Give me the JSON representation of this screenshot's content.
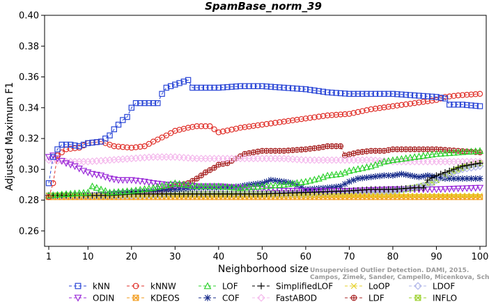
{
  "watermark": {
    "line1": "Unsupervised Outlier Detection. DAMI, 2015.",
    "line2": "Campos, Zimek, Sander, Campello, Micenkova, Schubert, Assent, Houle"
  },
  "chart_data": {
    "type": "line",
    "title": "SpamBase_norm_39",
    "xlabel": "Neighborhood size",
    "ylabel": "Adjusted Maximum F1",
    "xlim": [
      1,
      100
    ],
    "ylim": [
      0.25,
      0.4
    ],
    "xticks": [
      1,
      10,
      20,
      30,
      40,
      50,
      60,
      70,
      80,
      90,
      100
    ],
    "yticks": [
      0.26,
      0.28,
      0.3,
      0.32,
      0.34,
      0.36,
      0.38,
      0.4
    ],
    "ytick_labels": [
      "0.26",
      "0.28",
      "0.30",
      "0.32",
      "0.34",
      "0.36",
      "0.38",
      "0.40"
    ],
    "grid": false,
    "legend_position": "bottom",
    "series": [
      {
        "name": "kNN",
        "color": "#2a46d6",
        "marker": "square",
        "points": [
          [
            1,
            0.291
          ],
          [
            2,
            0.308
          ],
          [
            3,
            0.313
          ],
          [
            4,
            0.316
          ],
          [
            6,
            0.316
          ],
          [
            8,
            0.315
          ],
          [
            10,
            0.317
          ],
          [
            13,
            0.318
          ],
          [
            15,
            0.322
          ],
          [
            16,
            0.326
          ],
          [
            18,
            0.332
          ],
          [
            19,
            0.334
          ],
          [
            20,
            0.34
          ],
          [
            21,
            0.343
          ],
          [
            23,
            0.343
          ],
          [
            26,
            0.343
          ],
          [
            27,
            0.349
          ],
          [
            28,
            0.353
          ],
          [
            30,
            0.355
          ],
          [
            32,
            0.357
          ],
          [
            33,
            0.358
          ],
          [
            34,
            0.353
          ],
          [
            40,
            0.353
          ],
          [
            45,
            0.354
          ],
          [
            50,
            0.354
          ],
          [
            55,
            0.353
          ],
          [
            60,
            0.352
          ],
          [
            65,
            0.35
          ],
          [
            70,
            0.349
          ],
          [
            75,
            0.349
          ],
          [
            80,
            0.349
          ],
          [
            85,
            0.348
          ],
          [
            90,
            0.347
          ],
          [
            92,
            0.346
          ],
          [
            93,
            0.342
          ],
          [
            96,
            0.342
          ],
          [
            100,
            0.341
          ]
        ]
      },
      {
        "name": "kNNW",
        "color": "#e0302a",
        "marker": "circle",
        "points": [
          [
            1,
            0.282
          ],
          [
            2,
            0.291
          ],
          [
            3,
            0.309
          ],
          [
            4,
            0.311
          ],
          [
            5,
            0.313
          ],
          [
            8,
            0.314
          ],
          [
            10,
            0.317
          ],
          [
            13,
            0.318
          ],
          [
            15,
            0.316
          ],
          [
            16,
            0.315
          ],
          [
            20,
            0.314
          ],
          [
            23,
            0.315
          ],
          [
            25,
            0.318
          ],
          [
            28,
            0.322
          ],
          [
            30,
            0.325
          ],
          [
            33,
            0.327
          ],
          [
            35,
            0.328
          ],
          [
            38,
            0.328
          ],
          [
            39,
            0.326
          ],
          [
            40,
            0.324
          ],
          [
            45,
            0.327
          ],
          [
            50,
            0.329
          ],
          [
            55,
            0.331
          ],
          [
            60,
            0.333
          ],
          [
            65,
            0.335
          ],
          [
            70,
            0.336
          ],
          [
            75,
            0.339
          ],
          [
            80,
            0.341
          ],
          [
            85,
            0.343
          ],
          [
            90,
            0.345
          ],
          [
            92,
            0.347
          ],
          [
            95,
            0.348
          ],
          [
            100,
            0.349
          ]
        ]
      },
      {
        "name": "LOF",
        "color": "#2ed12e",
        "marker": "triangle",
        "points": [
          [
            1,
            0.283
          ],
          [
            5,
            0.284
          ],
          [
            10,
            0.285
          ],
          [
            11,
            0.289
          ],
          [
            13,
            0.287
          ],
          [
            15,
            0.285
          ],
          [
            20,
            0.286
          ],
          [
            25,
            0.288
          ],
          [
            30,
            0.291
          ],
          [
            35,
            0.289
          ],
          [
            40,
            0.289
          ],
          [
            45,
            0.288
          ],
          [
            50,
            0.289
          ],
          [
            55,
            0.29
          ],
          [
            60,
            0.292
          ],
          [
            63,
            0.294
          ],
          [
            65,
            0.296
          ],
          [
            68,
            0.297
          ],
          [
            70,
            0.299
          ],
          [
            75,
            0.302
          ],
          [
            78,
            0.305
          ],
          [
            80,
            0.306
          ],
          [
            85,
            0.308
          ],
          [
            90,
            0.31
          ],
          [
            95,
            0.311
          ],
          [
            100,
            0.312
          ]
        ]
      },
      {
        "name": "SimplifiedLOF",
        "color": "#000000",
        "marker": "plus",
        "points": [
          [
            1,
            0.283
          ],
          [
            10,
            0.283
          ],
          [
            15,
            0.283
          ],
          [
            20,
            0.284
          ],
          [
            30,
            0.284
          ],
          [
            40,
            0.284
          ],
          [
            50,
            0.284
          ],
          [
            60,
            0.285
          ],
          [
            70,
            0.286
          ],
          [
            75,
            0.287
          ],
          [
            80,
            0.287
          ],
          [
            85,
            0.288
          ],
          [
            87,
            0.288
          ],
          [
            88,
            0.293
          ],
          [
            90,
            0.296
          ],
          [
            92,
            0.298
          ],
          [
            94,
            0.3
          ],
          [
            96,
            0.302
          ],
          [
            98,
            0.303
          ],
          [
            100,
            0.304
          ]
        ]
      },
      {
        "name": "LoOP",
        "color": "#e6d12a",
        "marker": "x",
        "points": [
          [
            1,
            0.283
          ],
          [
            10,
            0.283
          ],
          [
            20,
            0.283
          ],
          [
            30,
            0.283
          ],
          [
            40,
            0.283
          ],
          [
            50,
            0.283
          ],
          [
            60,
            0.283
          ],
          [
            70,
            0.283
          ],
          [
            80,
            0.283
          ],
          [
            90,
            0.283
          ],
          [
            100,
            0.283
          ]
        ]
      },
      {
        "name": "LDOF",
        "color": "#aeb4e8",
        "marker": "diamond",
        "points": [
          [
            1,
            0.283
          ],
          [
            10,
            0.283
          ],
          [
            20,
            0.283
          ],
          [
            30,
            0.284
          ],
          [
            40,
            0.284
          ],
          [
            50,
            0.284
          ],
          [
            60,
            0.284
          ],
          [
            70,
            0.285
          ],
          [
            80,
            0.286
          ],
          [
            85,
            0.288
          ],
          [
            88,
            0.29
          ],
          [
            90,
            0.293
          ],
          [
            92,
            0.296
          ],
          [
            94,
            0.298
          ],
          [
            96,
            0.3
          ],
          [
            98,
            0.301
          ],
          [
            100,
            0.302
          ]
        ]
      },
      {
        "name": "ODIN",
        "color": "#9a2ad8",
        "marker": "triangle-down",
        "points": [
          [
            1,
            0.308
          ],
          [
            2,
            0.309
          ],
          [
            3,
            0.307
          ],
          [
            5,
            0.304
          ],
          [
            7,
            0.302
          ],
          [
            9,
            0.299
          ],
          [
            11,
            0.297
          ],
          [
            13,
            0.296
          ],
          [
            15,
            0.294
          ],
          [
            17,
            0.293
          ],
          [
            20,
            0.293
          ],
          [
            23,
            0.292
          ],
          [
            25,
            0.291
          ],
          [
            28,
            0.29
          ],
          [
            30,
            0.29
          ],
          [
            35,
            0.289
          ],
          [
            40,
            0.289
          ],
          [
            45,
            0.288
          ],
          [
            50,
            0.287
          ],
          [
            55,
            0.286
          ],
          [
            60,
            0.286
          ],
          [
            70,
            0.286
          ],
          [
            80,
            0.287
          ],
          [
            90,
            0.287
          ],
          [
            100,
            0.288
          ]
        ]
      },
      {
        "name": "KDEOS",
        "color": "#f29a18",
        "marker": "square-x",
        "points": [
          [
            1,
            0.282
          ],
          [
            10,
            0.282
          ],
          [
            20,
            0.282
          ],
          [
            30,
            0.282
          ],
          [
            40,
            0.282
          ],
          [
            50,
            0.282
          ],
          [
            60,
            0.282
          ],
          [
            70,
            0.282
          ],
          [
            80,
            0.282
          ],
          [
            90,
            0.282
          ],
          [
            100,
            0.282
          ]
        ]
      },
      {
        "name": "COF",
        "color": "#1a2e8c",
        "marker": "star",
        "points": [
          [
            1,
            0.283
          ],
          [
            10,
            0.283
          ],
          [
            15,
            0.284
          ],
          [
            20,
            0.285
          ],
          [
            25,
            0.286
          ],
          [
            30,
            0.287
          ],
          [
            35,
            0.288
          ],
          [
            40,
            0.288
          ],
          [
            45,
            0.289
          ],
          [
            47,
            0.29
          ],
          [
            50,
            0.291
          ],
          [
            52,
            0.293
          ],
          [
            55,
            0.292
          ],
          [
            57,
            0.291
          ],
          [
            60,
            0.287
          ],
          [
            65,
            0.288
          ],
          [
            68,
            0.289
          ],
          [
            70,
            0.292
          ],
          [
            72,
            0.294
          ],
          [
            75,
            0.295
          ],
          [
            78,
            0.296
          ],
          [
            80,
            0.296
          ],
          [
            82,
            0.297
          ],
          [
            84,
            0.296
          ],
          [
            86,
            0.295
          ],
          [
            88,
            0.296
          ],
          [
            90,
            0.295
          ],
          [
            92,
            0.294
          ],
          [
            95,
            0.294
          ],
          [
            100,
            0.294
          ]
        ]
      },
      {
        "name": "FastABOD",
        "color": "#f4b8ec",
        "marker": "diamond",
        "points": [
          [
            1,
            0.306
          ],
          [
            5,
            0.305
          ],
          [
            10,
            0.305
          ],
          [
            15,
            0.306
          ],
          [
            20,
            0.307
          ],
          [
            25,
            0.308
          ],
          [
            30,
            0.308
          ],
          [
            35,
            0.307
          ],
          [
            40,
            0.307
          ],
          [
            45,
            0.307
          ],
          [
            50,
            0.307
          ],
          [
            55,
            0.307
          ],
          [
            60,
            0.306
          ],
          [
            65,
            0.306
          ],
          [
            68,
            0.306
          ],
          [
            70,
            0.306
          ],
          [
            75,
            0.306
          ],
          [
            80,
            0.305
          ],
          [
            85,
            0.305
          ],
          [
            90,
            0.305
          ],
          [
            95,
            0.305
          ],
          [
            100,
            0.305
          ]
        ]
      },
      {
        "name": "LDF",
        "color": "#a82424",
        "marker": "circle-plus",
        "points": [
          [
            1,
            0.283
          ],
          [
            10,
            0.283
          ],
          [
            20,
            0.284
          ],
          [
            25,
            0.285
          ],
          [
            28,
            0.287
          ],
          [
            30,
            0.289
          ],
          [
            33,
            0.291
          ],
          [
            35,
            0.294
          ],
          [
            37,
            0.298
          ],
          [
            39,
            0.301
          ],
          [
            40,
            0.303
          ],
          [
            42,
            0.304
          ],
          [
            44,
            0.307
          ],
          [
            46,
            0.31
          ],
          [
            48,
            0.311
          ],
          [
            50,
            0.312
          ],
          [
            55,
            0.312
          ],
          [
            60,
            0.313
          ],
          [
            63,
            0.314
          ],
          [
            65,
            0.315
          ],
          [
            68,
            0.315
          ],
          [
            69,
            0.309
          ],
          [
            72,
            0.311
          ],
          [
            75,
            0.312
          ],
          [
            78,
            0.312
          ],
          [
            80,
            0.313
          ],
          [
            85,
            0.313
          ],
          [
            90,
            0.313
          ],
          [
            95,
            0.312
          ],
          [
            100,
            0.311
          ]
        ]
      },
      {
        "name": "INFLO",
        "color": "#9ad02a",
        "marker": "square-x",
        "points": [
          [
            1,
            0.283
          ],
          [
            10,
            0.283
          ],
          [
            20,
            0.283
          ],
          [
            30,
            0.284
          ],
          [
            40,
            0.284
          ],
          [
            50,
            0.284
          ],
          [
            60,
            0.284
          ],
          [
            70,
            0.285
          ],
          [
            80,
            0.286
          ],
          [
            85,
            0.288
          ],
          [
            88,
            0.29
          ],
          [
            90,
            0.293
          ],
          [
            92,
            0.296
          ],
          [
            94,
            0.299
          ],
          [
            96,
            0.301
          ],
          [
            98,
            0.303
          ],
          [
            100,
            0.304
          ]
        ]
      }
    ]
  }
}
